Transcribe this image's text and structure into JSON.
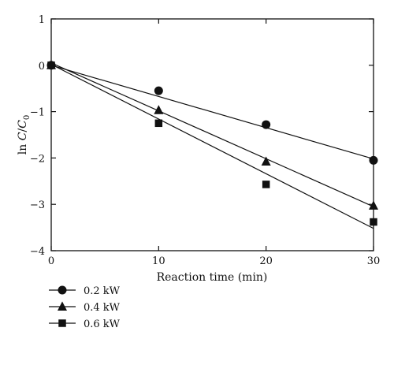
{
  "chart_data": {
    "type": "scatter",
    "xlabel": "Reaction time (min)",
    "ylabel_parts": [
      "ln ",
      "C",
      "/",
      "C",
      "0"
    ],
    "xlim": [
      0,
      30
    ],
    "ylim": [
      -4,
      1
    ],
    "x_ticks": [
      0,
      10,
      20,
      30
    ],
    "y_ticks": [
      1,
      0,
      -1,
      -2,
      -3,
      -4
    ],
    "grid": false,
    "legend_position": "bottom-left, below plot",
    "series": [
      {
        "name": "0.2 kW",
        "marker": "circle",
        "x": [
          0,
          10,
          20,
          30
        ],
        "y": [
          0.0,
          -0.55,
          -1.28,
          -2.05
        ],
        "fit": {
          "x": [
            0,
            30
          ],
          "y": [
            0.0,
            -2.02
          ]
        }
      },
      {
        "name": "0.4 kW",
        "marker": "triangle",
        "x": [
          0,
          10,
          20,
          30
        ],
        "y": [
          0.0,
          -0.97,
          -2.08,
          -3.03
        ],
        "fit": {
          "x": [
            0,
            30
          ],
          "y": [
            0.05,
            -3.05
          ]
        }
      },
      {
        "name": "0.6 kW",
        "marker": "square",
        "x": [
          0,
          10,
          20,
          30
        ],
        "y": [
          0.0,
          -1.25,
          -2.57,
          -3.38
        ],
        "fit": {
          "x": [
            0,
            30
          ],
          "y": [
            0.02,
            -3.52
          ]
        }
      }
    ]
  }
}
